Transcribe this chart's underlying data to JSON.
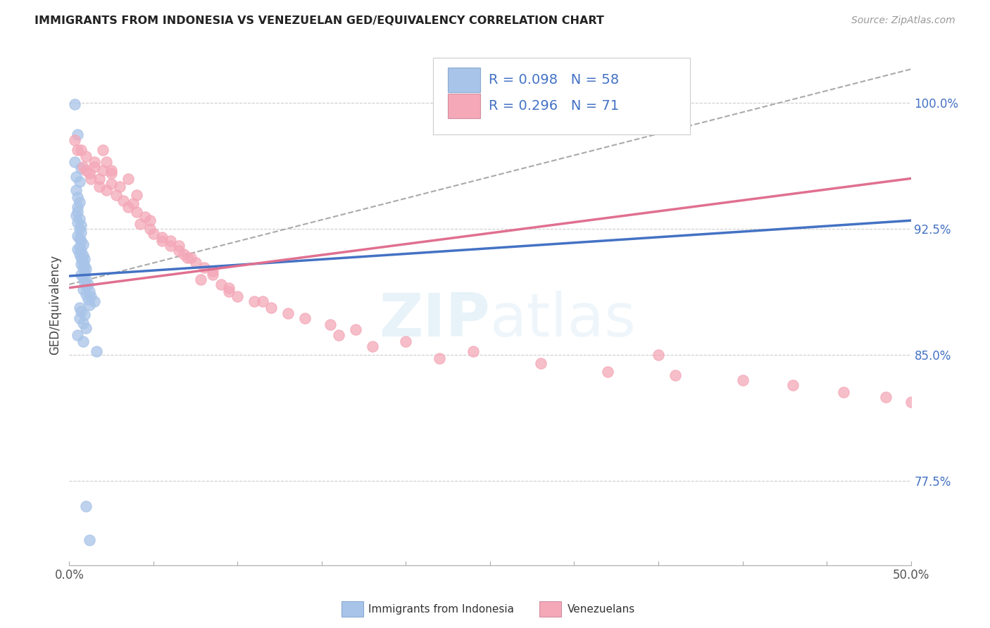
{
  "title": "IMMIGRANTS FROM INDONESIA VS VENEZUELAN GED/EQUIVALENCY CORRELATION CHART",
  "source": "Source: ZipAtlas.com",
  "ylabel": "GED/Equivalency",
  "yticks": [
    "100.0%",
    "92.5%",
    "85.0%",
    "77.5%"
  ],
  "ytick_vals": [
    1.0,
    0.925,
    0.85,
    0.775
  ],
  "color_indonesia": "#a8c4e8",
  "color_venezuela": "#f4a8b8",
  "color_blue_line": "#4472c4",
  "color_pink_line": "#e07090",
  "color_text_blue": "#4472c4",
  "xmin": 0.0,
  "xmax": 0.5,
  "ymin": 0.725,
  "ymax": 1.035,
  "indo_x": [
    0.003,
    0.005,
    0.003,
    0.007,
    0.004,
    0.006,
    0.004,
    0.005,
    0.006,
    0.005,
    0.005,
    0.004,
    0.006,
    0.005,
    0.007,
    0.006,
    0.007,
    0.005,
    0.006,
    0.007,
    0.008,
    0.006,
    0.005,
    0.007,
    0.006,
    0.008,
    0.007,
    0.009,
    0.008,
    0.007,
    0.009,
    0.008,
    0.01,
    0.009,
    0.007,
    0.008,
    0.01,
    0.009,
    0.011,
    0.01,
    0.008,
    0.012,
    0.01,
    0.013,
    0.011,
    0.015,
    0.012,
    0.006,
    0.007,
    0.009,
    0.006,
    0.008,
    0.01,
    0.005,
    0.008,
    0.016,
    0.01,
    0.012
  ],
  "indo_y": [
    0.999,
    0.981,
    0.965,
    0.961,
    0.956,
    0.953,
    0.948,
    0.944,
    0.941,
    0.938,
    0.935,
    0.933,
    0.931,
    0.929,
    0.927,
    0.925,
    0.923,
    0.921,
    0.919,
    0.918,
    0.916,
    0.914,
    0.913,
    0.912,
    0.91,
    0.909,
    0.908,
    0.907,
    0.905,
    0.904,
    0.903,
    0.902,
    0.901,
    0.899,
    0.898,
    0.896,
    0.895,
    0.893,
    0.892,
    0.891,
    0.889,
    0.888,
    0.886,
    0.885,
    0.883,
    0.882,
    0.88,
    0.878,
    0.876,
    0.874,
    0.872,
    0.869,
    0.866,
    0.862,
    0.858,
    0.852,
    0.76,
    0.74
  ],
  "vene_x": [
    0.003,
    0.005,
    0.01,
    0.015,
    0.008,
    0.012,
    0.007,
    0.01,
    0.013,
    0.018,
    0.02,
    0.015,
    0.022,
    0.025,
    0.018,
    0.03,
    0.02,
    0.025,
    0.022,
    0.028,
    0.032,
    0.025,
    0.035,
    0.04,
    0.038,
    0.045,
    0.035,
    0.042,
    0.048,
    0.04,
    0.05,
    0.055,
    0.048,
    0.06,
    0.055,
    0.065,
    0.06,
    0.07,
    0.065,
    0.075,
    0.068,
    0.08,
    0.072,
    0.085,
    0.078,
    0.09,
    0.095,
    0.1,
    0.085,
    0.11,
    0.12,
    0.095,
    0.13,
    0.115,
    0.14,
    0.155,
    0.17,
    0.16,
    0.2,
    0.18,
    0.24,
    0.22,
    0.28,
    0.32,
    0.36,
    0.4,
    0.35,
    0.43,
    0.46,
    0.485,
    0.5
  ],
  "vene_y": [
    0.978,
    0.972,
    0.968,
    0.965,
    0.962,
    0.958,
    0.972,
    0.96,
    0.955,
    0.95,
    0.972,
    0.962,
    0.965,
    0.958,
    0.955,
    0.95,
    0.96,
    0.952,
    0.948,
    0.945,
    0.942,
    0.96,
    0.938,
    0.935,
    0.94,
    0.932,
    0.955,
    0.928,
    0.925,
    0.945,
    0.922,
    0.918,
    0.93,
    0.915,
    0.92,
    0.912,
    0.918,
    0.908,
    0.915,
    0.905,
    0.91,
    0.902,
    0.908,
    0.898,
    0.895,
    0.892,
    0.888,
    0.885,
    0.9,
    0.882,
    0.878,
    0.89,
    0.875,
    0.882,
    0.872,
    0.868,
    0.865,
    0.862,
    0.858,
    0.855,
    0.852,
    0.848,
    0.845,
    0.84,
    0.838,
    0.835,
    0.85,
    0.832,
    0.828,
    0.825,
    0.822
  ],
  "indo_line_x": [
    0.0,
    0.5
  ],
  "indo_line_y": [
    0.897,
    0.93
  ],
  "vene_line_x": [
    0.0,
    0.5
  ],
  "vene_line_y": [
    0.89,
    0.955
  ],
  "dash_line_x": [
    0.0,
    0.5
  ],
  "dash_line_y": [
    0.892,
    1.02
  ]
}
